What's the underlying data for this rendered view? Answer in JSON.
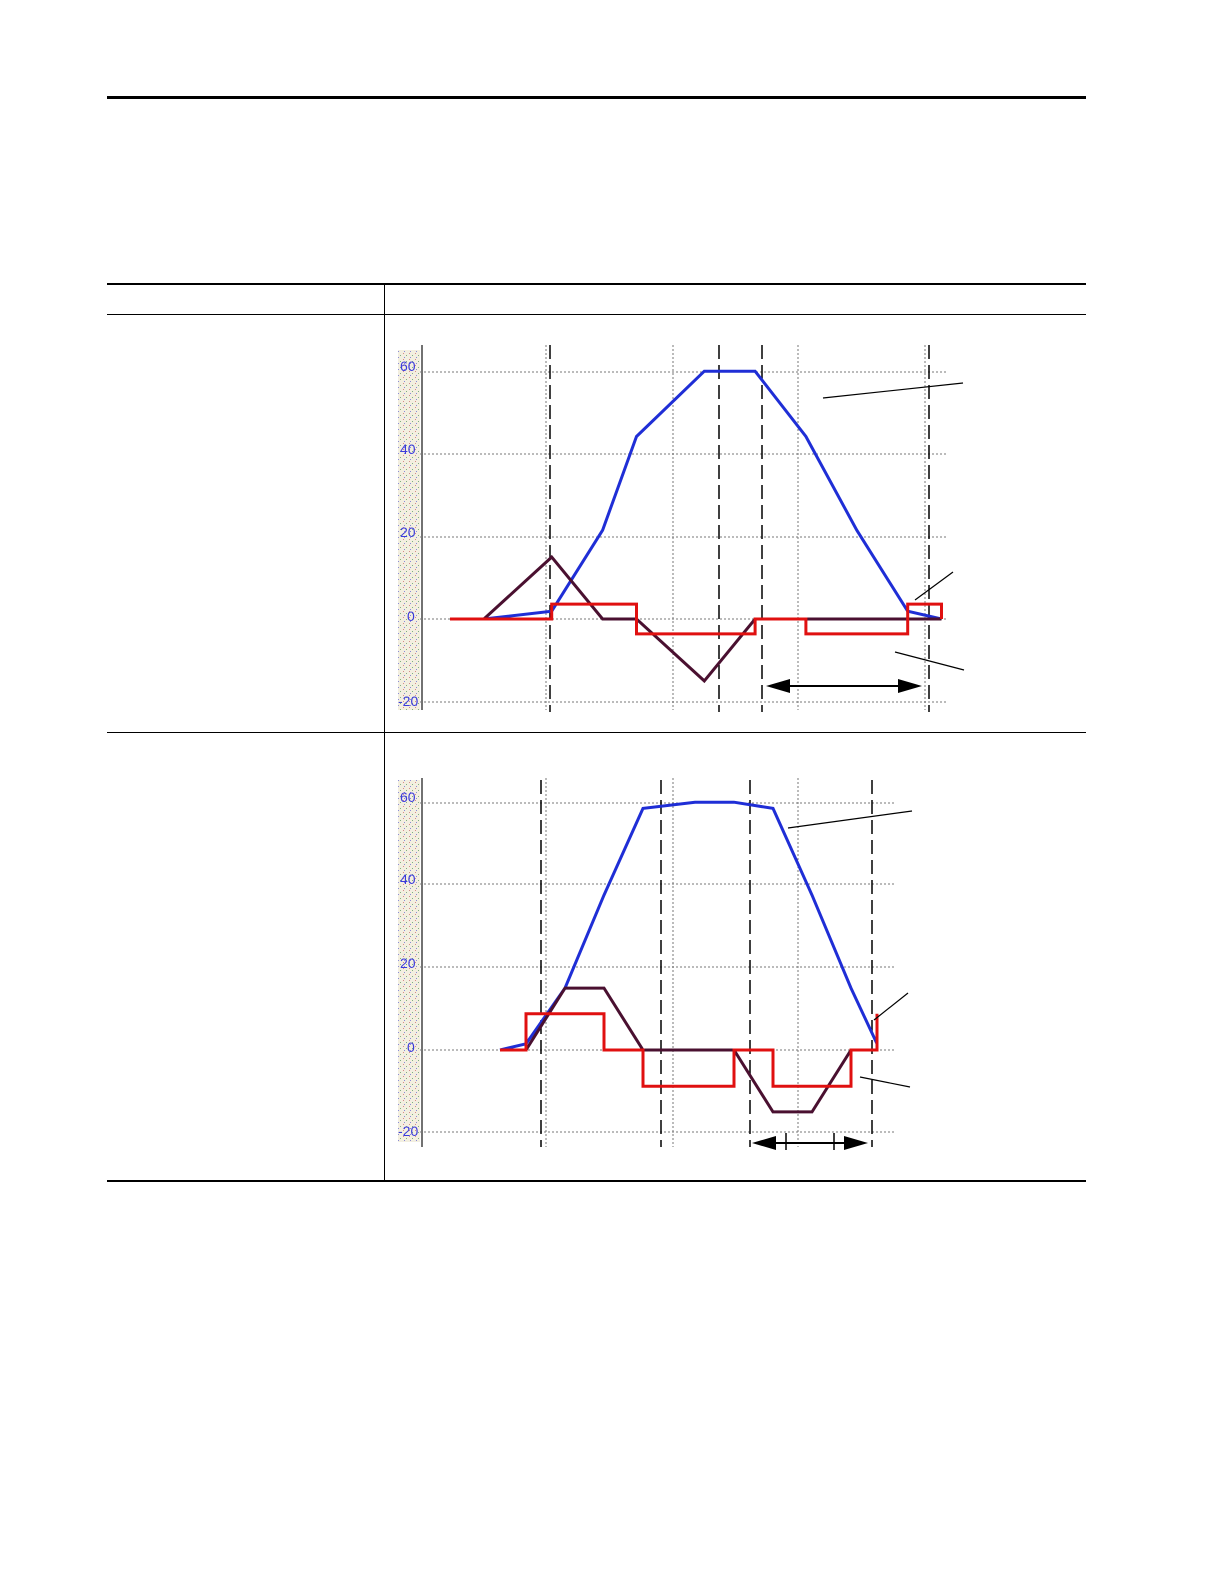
{
  "document": {
    "table_rows": 2
  },
  "chart_data": [
    {
      "type": "line",
      "title": "",
      "xlabel": "",
      "ylabel": "",
      "ylim": [
        -20,
        60
      ],
      "yticks": [
        "60",
        "40",
        "20",
        "0",
        "-20"
      ],
      "grid": true,
      "colors": {
        "velocity": "#1f2ed6",
        "acceleration": "#e01010",
        "jerk": "#4a1030",
        "tick": "#3b3bdc"
      },
      "x": [
        0,
        10,
        30,
        45,
        55,
        75,
        90,
        105,
        120,
        135,
        145
      ],
      "series": [
        {
          "values": [
            0,
            0,
            1.9,
            21.5,
            44.2,
            60,
            60,
            44.2,
            21.5,
            1.9,
            0
          ]
        },
        {
          "values": [
            0,
            0,
            15,
            0,
            0,
            -15,
            0,
            0,
            0,
            0,
            0
          ]
        },
        {
          "values": [
            0,
            0,
            3.6,
            3.6,
            -3.6,
            -3.6,
            0,
            -3.6,
            -3.6,
            3.6,
            0
          ]
        }
      ]
    },
    {
      "type": "line",
      "title": "",
      "xlabel": "",
      "ylabel": "",
      "ylim": [
        -20,
        60
      ],
      "yticks": [
        "60",
        "40",
        "20",
        "0",
        "-20"
      ],
      "grid": true,
      "colors": {
        "velocity": "#1f2ed6",
        "acceleration": "#e01010",
        "jerk": "#4a1030",
        "tick": "#3b3bdc"
      },
      "x": [
        0,
        10,
        25,
        40,
        55,
        75,
        90,
        105,
        120,
        135,
        145
      ],
      "series": [
        {
          "values": [
            0,
            0,
            15,
            15,
            0,
            0,
            0,
            -15,
            -15,
            0,
            0
          ]
        },
        {
          "values": [
            0,
            8.8,
            8.8,
            0,
            -8.8,
            -8.8,
            0,
            -8.8,
            -8.8,
            0,
            8.8
          ]
        },
        {
          "values": [
            0,
            1.5,
            15,
            37.5,
            58.5,
            60,
            60,
            58.5,
            37.5,
            15,
            1.5
          ]
        }
      ]
    }
  ]
}
